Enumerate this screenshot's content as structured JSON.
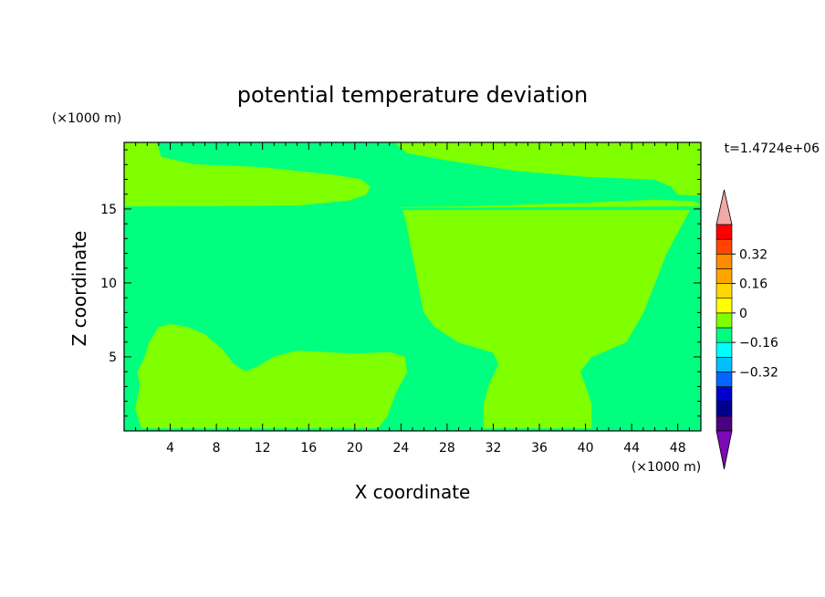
{
  "chart_data": {
    "type": "heatmap",
    "title": "potential temperature deviation",
    "xlabel": "X coordinate",
    "ylabel": "Z coordinate",
    "x_unit_label": "(×1000 m)",
    "y_unit_label": "(×1000 m)",
    "time_label": "t=1.4724e+06",
    "xlim": [
      0,
      50
    ],
    "ylim": [
      0,
      19.5
    ],
    "x_ticks": [
      4,
      8,
      12,
      16,
      20,
      24,
      28,
      32,
      36,
      40,
      44,
      48
    ],
    "y_ticks": [
      5,
      10,
      15
    ],
    "background_level": "-0.04 to 0",
    "regions": [
      {
        "name": "upper-left band",
        "level": "0 to 0.04",
        "outline": [
          [
            0,
            19.5
          ],
          [
            2.8,
            19.5
          ],
          [
            3.2,
            18.5
          ],
          [
            6,
            18
          ],
          [
            12,
            17.8
          ],
          [
            18,
            17.3
          ],
          [
            20.5,
            17
          ],
          [
            21.3,
            16.5
          ],
          [
            21,
            16
          ],
          [
            19.5,
            15.6
          ],
          [
            15,
            15.25
          ],
          [
            0,
            15.2
          ]
        ]
      },
      {
        "name": "upper-right band",
        "level": "0 to 0.04",
        "outline": [
          [
            23.5,
            19.5
          ],
          [
            50,
            19.5
          ],
          [
            50,
            15.9
          ],
          [
            48,
            16
          ],
          [
            47.5,
            16.5
          ],
          [
            46,
            17
          ],
          [
            40,
            17.2
          ],
          [
            34,
            17.6
          ],
          [
            28,
            18.3
          ],
          [
            24.5,
            18.8
          ],
          [
            23.5,
            19.5
          ]
        ]
      },
      {
        "name": "upper-right lower band",
        "level": "0 to 0.04",
        "outline": [
          [
            24,
            15.1
          ],
          [
            50,
            15.2
          ],
          [
            49.5,
            15.5
          ],
          [
            46,
            15.6
          ],
          [
            40,
            15.4
          ],
          [
            30,
            15.15
          ]
        ]
      },
      {
        "name": "central plume",
        "level": "0 to 0.04",
        "outline": [
          [
            24.2,
            14.9
          ],
          [
            49,
            14.9
          ],
          [
            47,
            12
          ],
          [
            45,
            8
          ],
          [
            43.5,
            6
          ],
          [
            42,
            5.5
          ],
          [
            40.5,
            5
          ],
          [
            39.5,
            4
          ],
          [
            40,
            3
          ],
          [
            40.5,
            1.8
          ],
          [
            40.5,
            0.2
          ],
          [
            31.2,
            0.2
          ],
          [
            31.2,
            1.8
          ],
          [
            31.6,
            3
          ],
          [
            32.2,
            4
          ],
          [
            32.5,
            4.5
          ],
          [
            32,
            5.3
          ],
          [
            29,
            6
          ],
          [
            27,
            7
          ],
          [
            26,
            8
          ],
          [
            25.5,
            10
          ],
          [
            25,
            12
          ],
          [
            24.5,
            14
          ]
        ]
      },
      {
        "name": "lower-left blob",
        "level": "0 to 0.04",
        "outline": [
          [
            1.5,
            0.2
          ],
          [
            22,
            0.2
          ],
          [
            22.8,
            1
          ],
          [
            23.5,
            2.5
          ],
          [
            24.5,
            4
          ],
          [
            24.3,
            5
          ],
          [
            23,
            5.3
          ],
          [
            20,
            5.2
          ],
          [
            15,
            5.4
          ],
          [
            13,
            5
          ],
          [
            11.5,
            4.3
          ],
          [
            10.5,
            4
          ],
          [
            9.5,
            4.5
          ],
          [
            8.5,
            5.5
          ],
          [
            7,
            6.5
          ],
          [
            5.5,
            7
          ],
          [
            4,
            7.2
          ],
          [
            3,
            7
          ],
          [
            2.2,
            6
          ],
          [
            1.8,
            5
          ],
          [
            1.2,
            4
          ],
          [
            1.4,
            3
          ],
          [
            1,
            1.5
          ],
          [
            1.5,
            0.2
          ]
        ]
      }
    ],
    "colorbar": {
      "orientation": "vertical",
      "levels": [
        -0.4,
        -0.36,
        -0.32,
        -0.28,
        -0.24,
        -0.2,
        -0.16,
        -0.12,
        -0.08,
        -0.04,
        0,
        0.04,
        0.08,
        0.12,
        0.16,
        0.2,
        0.24,
        0.28,
        0.32,
        0.36,
        0.4
      ],
      "labeled_ticks": [
        "0.32",
        "0.16",
        "0",
        "−0.16",
        "−0.32"
      ],
      "colors_bottom_to_top": [
        "#4b0082",
        "#00008b",
        "#0000cd",
        "#0066ff",
        "#00bfff",
        "#00ffff",
        "#00ff7f",
        "#7fff00",
        "#ffff00",
        "#ffd700",
        "#ffa500",
        "#ff8c00",
        "#ff4500",
        "#ff0000"
      ],
      "under_color": "#7a0ab8",
      "over_color": "#f0a8a8"
    }
  }
}
